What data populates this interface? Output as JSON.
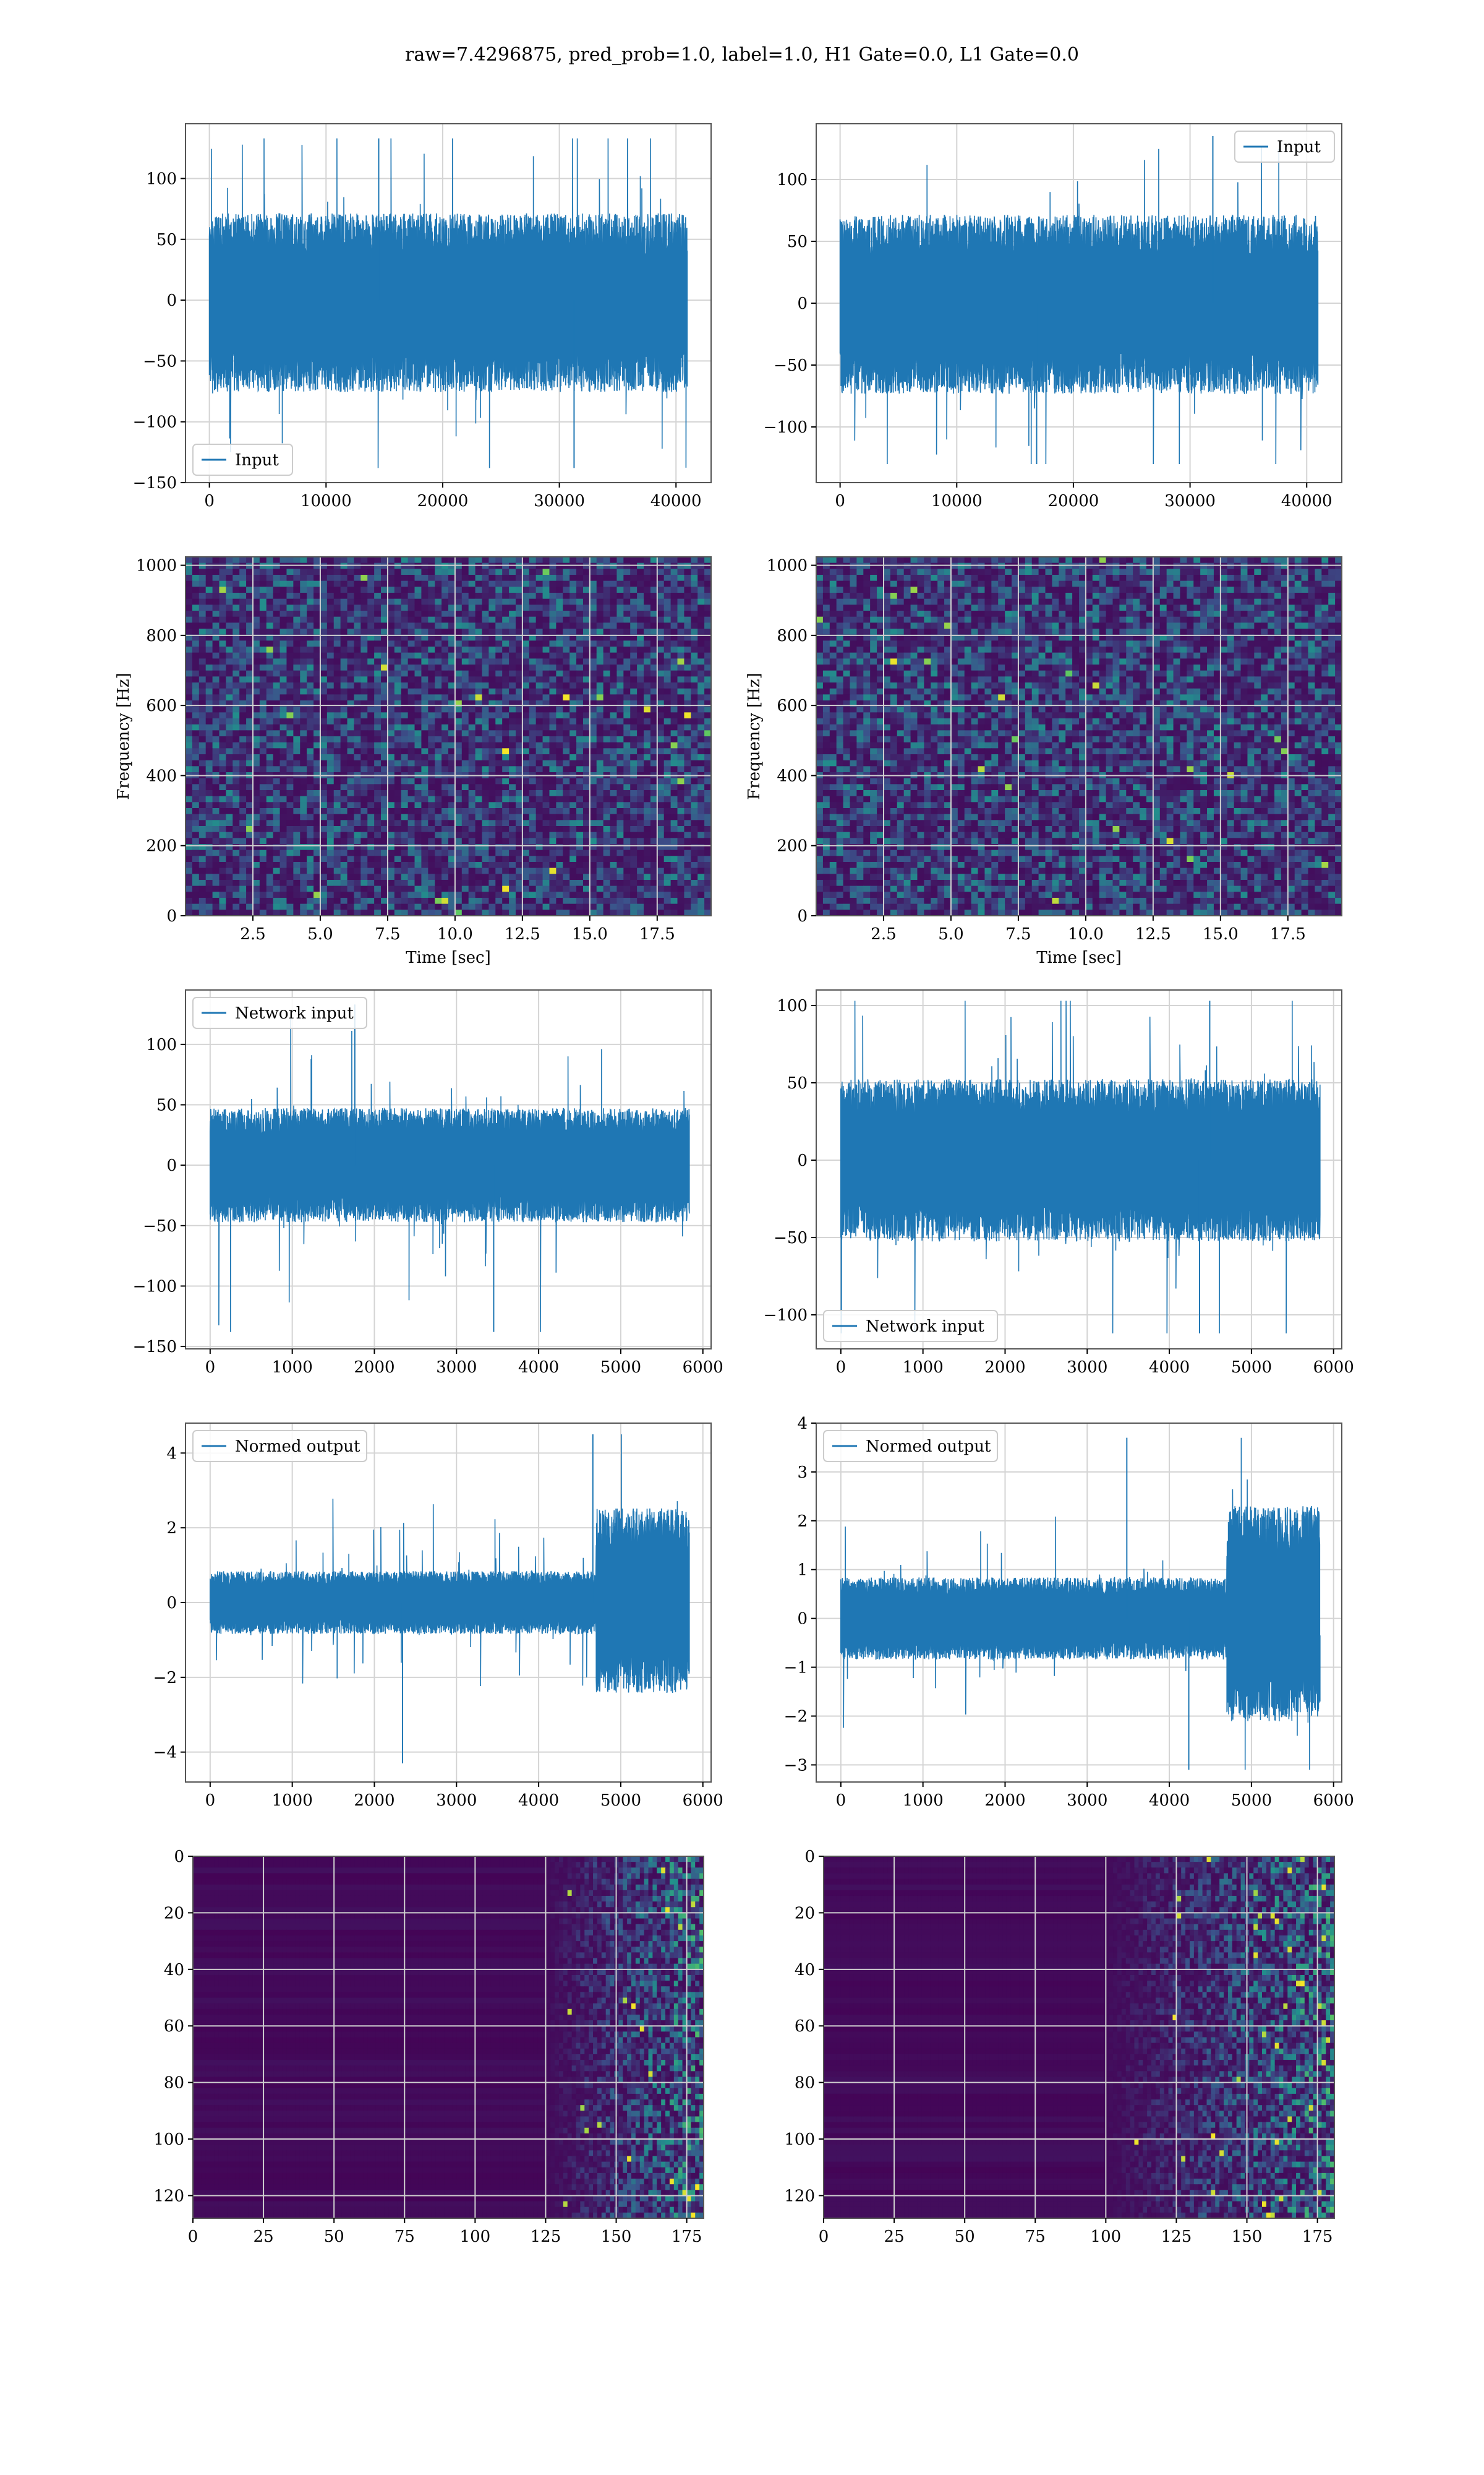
{
  "suptitle": "raw=7.4296875, pred_prob=1.0, label=1.0, H1 Gate=0.0, L1 Gate=0.0",
  "colors": {
    "line": "#1f77b4",
    "grid": "#d4d4d4",
    "frame": "#555555"
  },
  "chart_data": [
    {
      "type": "line",
      "title": "",
      "xlabel": "",
      "ylabel": "",
      "xlim": [
        -2048,
        43008
      ],
      "ylim": [
        -150,
        145
      ],
      "xticks": [
        0,
        10000,
        20000,
        30000,
        40000
      ],
      "xticklabels": [
        "0",
        "10000",
        "20000",
        "30000",
        "40000"
      ],
      "yticks": [
        -150,
        -100,
        -50,
        0,
        50,
        100
      ],
      "yticklabels": [
        "−150",
        "−100",
        "−50",
        "0",
        "50",
        "100"
      ],
      "legend": {
        "loc": "lower left",
        "label": "Input"
      },
      "series": [
        {
          "name": "Input",
          "x_range": [
            0,
            40960
          ],
          "noise_band": [
            -72,
            68
          ],
          "spike_range": [
            -138,
            133
          ]
        }
      ],
      "grid": true
    },
    {
      "type": "line",
      "title": "",
      "xlabel": "",
      "ylabel": "",
      "xlim": [
        -2048,
        43008
      ],
      "ylim": [
        -145,
        145
      ],
      "xticks": [
        0,
        10000,
        20000,
        30000,
        40000
      ],
      "xticklabels": [
        "0",
        "10000",
        "20000",
        "30000",
        "40000"
      ],
      "yticks": [
        -100,
        -50,
        0,
        50,
        100
      ],
      "yticklabels": [
        "−100",
        "−50",
        "0",
        "50",
        "100"
      ],
      "legend": {
        "loc": "upper right",
        "label": "Input"
      },
      "series": [
        {
          "name": "Input",
          "x_range": [
            0,
            40960
          ],
          "noise_band": [
            -70,
            68
          ],
          "spike_range": [
            -130,
            135
          ]
        }
      ],
      "grid": true
    },
    {
      "type": "heatmap",
      "title": "",
      "xlabel": "Time [sec]",
      "ylabel": "Frequency [Hz]",
      "xlim": [
        0,
        19.5
      ],
      "ylim": [
        0,
        1024
      ],
      "xticks": [
        2.5,
        5.0,
        7.5,
        10.0,
        12.5,
        15.0,
        17.5
      ],
      "xticklabels": [
        "2.5",
        "5.0",
        "7.5",
        "10.0",
        "12.5",
        "15.0",
        "17.5"
      ],
      "yticks": [
        0,
        200,
        400,
        600,
        800,
        1000
      ],
      "yticklabels": [
        "0",
        "200",
        "400",
        "600",
        "800",
        "1000"
      ],
      "colormap": "viridis",
      "grid": true
    },
    {
      "type": "heatmap",
      "title": "",
      "xlabel": "Time [sec]",
      "ylabel": "Frequency [Hz]",
      "xlim": [
        0,
        19.5
      ],
      "ylim": [
        0,
        1024
      ],
      "xticks": [
        2.5,
        5.0,
        7.5,
        10.0,
        12.5,
        15.0,
        17.5
      ],
      "xticklabels": [
        "2.5",
        "5.0",
        "7.5",
        "10.0",
        "12.5",
        "15.0",
        "17.5"
      ],
      "yticks": [
        0,
        200,
        400,
        600,
        800,
        1000
      ],
      "yticklabels": [
        "0",
        "200",
        "400",
        "600",
        "800",
        "1000"
      ],
      "colormap": "viridis",
      "grid": true
    },
    {
      "type": "line",
      "title": "",
      "xlabel": "",
      "ylabel": "",
      "xlim": [
        -300,
        6100
      ],
      "ylim": [
        -152,
        145
      ],
      "xticks": [
        0,
        1000,
        2000,
        3000,
        4000,
        5000,
        6000
      ],
      "xticklabels": [
        "0",
        "1000",
        "2000",
        "3000",
        "4000",
        "5000",
        "6000"
      ],
      "yticks": [
        -150,
        -100,
        -50,
        0,
        50,
        100
      ],
      "yticklabels": [
        "−150",
        "−100",
        "−50",
        "0",
        "50",
        "100"
      ],
      "legend": {
        "loc": "upper left",
        "label": "Network input"
      },
      "series": [
        {
          "name": "Network input",
          "x_range": [
            0,
            5835
          ],
          "noise_band": [
            -45,
            45
          ],
          "spike_range": [
            -138,
            133
          ]
        }
      ],
      "grid": true
    },
    {
      "type": "line",
      "title": "",
      "xlabel": "",
      "ylabel": "",
      "xlim": [
        -300,
        6100
      ],
      "ylim": [
        -122,
        110
      ],
      "xticks": [
        0,
        1000,
        2000,
        3000,
        4000,
        5000,
        6000
      ],
      "xticklabels": [
        "0",
        "1000",
        "2000",
        "3000",
        "4000",
        "5000",
        "6000"
      ],
      "yticks": [
        -100,
        -50,
        0,
        50,
        100
      ],
      "yticklabels": [
        "−100",
        "−50",
        "0",
        "50",
        "100"
      ],
      "legend": {
        "loc": "lower left",
        "label": "Network input"
      },
      "series": [
        {
          "name": "Network input",
          "x_range": [
            0,
            5835
          ],
          "noise_band": [
            -50,
            50
          ],
          "spike_range": [
            -112,
            103
          ]
        }
      ],
      "grid": true
    },
    {
      "type": "line",
      "title": "",
      "xlabel": "",
      "ylabel": "",
      "xlim": [
        -300,
        6100
      ],
      "ylim": [
        -4.8,
        4.8
      ],
      "xticks": [
        0,
        1000,
        2000,
        3000,
        4000,
        5000,
        6000
      ],
      "xticklabels": [
        "0",
        "1000",
        "2000",
        "3000",
        "4000",
        "5000",
        "6000"
      ],
      "yticks": [
        -4,
        -2,
        0,
        2,
        4
      ],
      "yticklabels": [
        "−4",
        "−2",
        "0",
        "2",
        "4"
      ],
      "legend": {
        "loc": "upper left",
        "label": "Normed output"
      },
      "series": [
        {
          "name": "Normed output",
          "x_range": [
            0,
            5835
          ],
          "noise_band": [
            -0.8,
            0.8
          ],
          "loud_from": 4700,
          "loud_band": [
            -2.3,
            2.4
          ],
          "spike_range": [
            -4.3,
            4.5
          ]
        }
      ],
      "grid": true
    },
    {
      "type": "line",
      "title": "",
      "xlabel": "",
      "ylabel": "",
      "xlim": [
        -300,
        6100
      ],
      "ylim": [
        -3.35,
        4.0
      ],
      "xticks": [
        0,
        1000,
        2000,
        3000,
        4000,
        5000,
        6000
      ],
      "xticklabels": [
        "0",
        "1000",
        "2000",
        "3000",
        "4000",
        "5000",
        "6000"
      ],
      "yticks": [
        -3,
        -2,
        -1,
        0,
        1,
        2,
        3,
        4
      ],
      "yticklabels": [
        "−3",
        "−2",
        "−1",
        "0",
        "1",
        "2",
        "3",
        "4"
      ],
      "legend": {
        "loc": "upper left",
        "label": "Normed output"
      },
      "series": [
        {
          "name": "Normed output",
          "x_range": [
            0,
            5835
          ],
          "noise_band": [
            -0.8,
            0.8
          ],
          "loud_from": 4700,
          "loud_band": [
            -2.0,
            2.2
          ],
          "spike_range": [
            -3.1,
            3.7
          ]
        }
      ],
      "grid": true
    },
    {
      "type": "heatmap",
      "title": "",
      "xlabel": "",
      "ylabel": "",
      "xlim": [
        0,
        181
      ],
      "ylim": [
        128,
        0
      ],
      "xticks": [
        0,
        25,
        50,
        75,
        100,
        125,
        150,
        175
      ],
      "xticklabels": [
        "0",
        "25",
        "50",
        "75",
        "100",
        "125",
        "150",
        "175"
      ],
      "yticks": [
        0,
        20,
        40,
        60,
        80,
        100,
        120
      ],
      "yticklabels": [
        "0",
        "20",
        "40",
        "60",
        "80",
        "100",
        "120"
      ],
      "colormap": "viridis",
      "activity_from": 125,
      "grid": true
    },
    {
      "type": "heatmap",
      "title": "",
      "xlabel": "",
      "ylabel": "",
      "xlim": [
        0,
        181
      ],
      "ylim": [
        128,
        0
      ],
      "xticks": [
        0,
        25,
        50,
        75,
        100,
        125,
        150,
        175
      ],
      "xticklabels": [
        "0",
        "25",
        "50",
        "75",
        "100",
        "125",
        "150",
        "175"
      ],
      "yticks": [
        0,
        20,
        40,
        60,
        80,
        100,
        120
      ],
      "yticklabels": [
        "0",
        "20",
        "40",
        "60",
        "80",
        "100",
        "120"
      ],
      "colormap": "viridis",
      "activity_from": 100,
      "grid": true
    }
  ]
}
